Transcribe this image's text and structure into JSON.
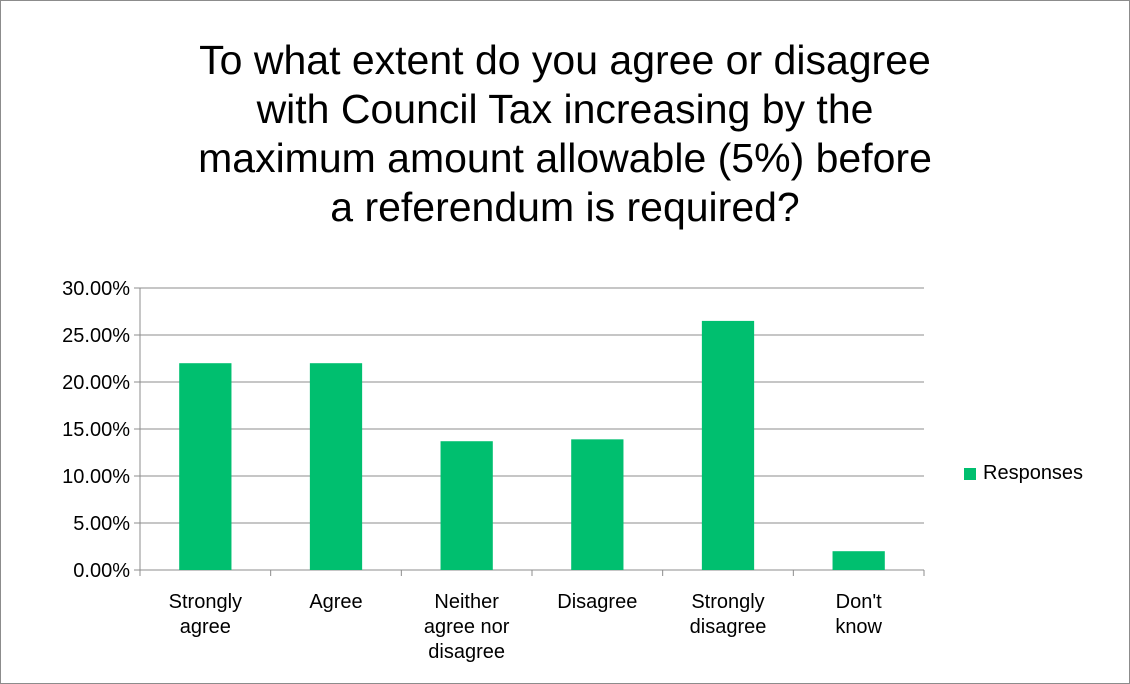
{
  "chart_data": {
    "type": "bar",
    "title_lines": [
      "To what extent do you agree or disagree",
      "with Council Tax increasing by the",
      "maximum amount allowable (5%) before",
      "a referendum is required?"
    ],
    "categories": [
      [
        "Strongly",
        "agree"
      ],
      [
        "Agree"
      ],
      [
        "Neither",
        "agree nor",
        "disagree"
      ],
      [
        "Disagree"
      ],
      [
        "Strongly",
        "disagree"
      ],
      [
        "Don't",
        "know"
      ]
    ],
    "series": [
      {
        "name": "Responses",
        "values": [
          22.0,
          22.0,
          13.7,
          13.9,
          26.5,
          2.0
        ],
        "color": "#00bf6f"
      }
    ],
    "ylim": [
      0,
      30
    ],
    "yticks": [
      "0.00%",
      "5.00%",
      "10.00%",
      "15.00%",
      "20.00%",
      "25.00%",
      "30.00%"
    ],
    "grid": true,
    "legend_position": "right"
  }
}
